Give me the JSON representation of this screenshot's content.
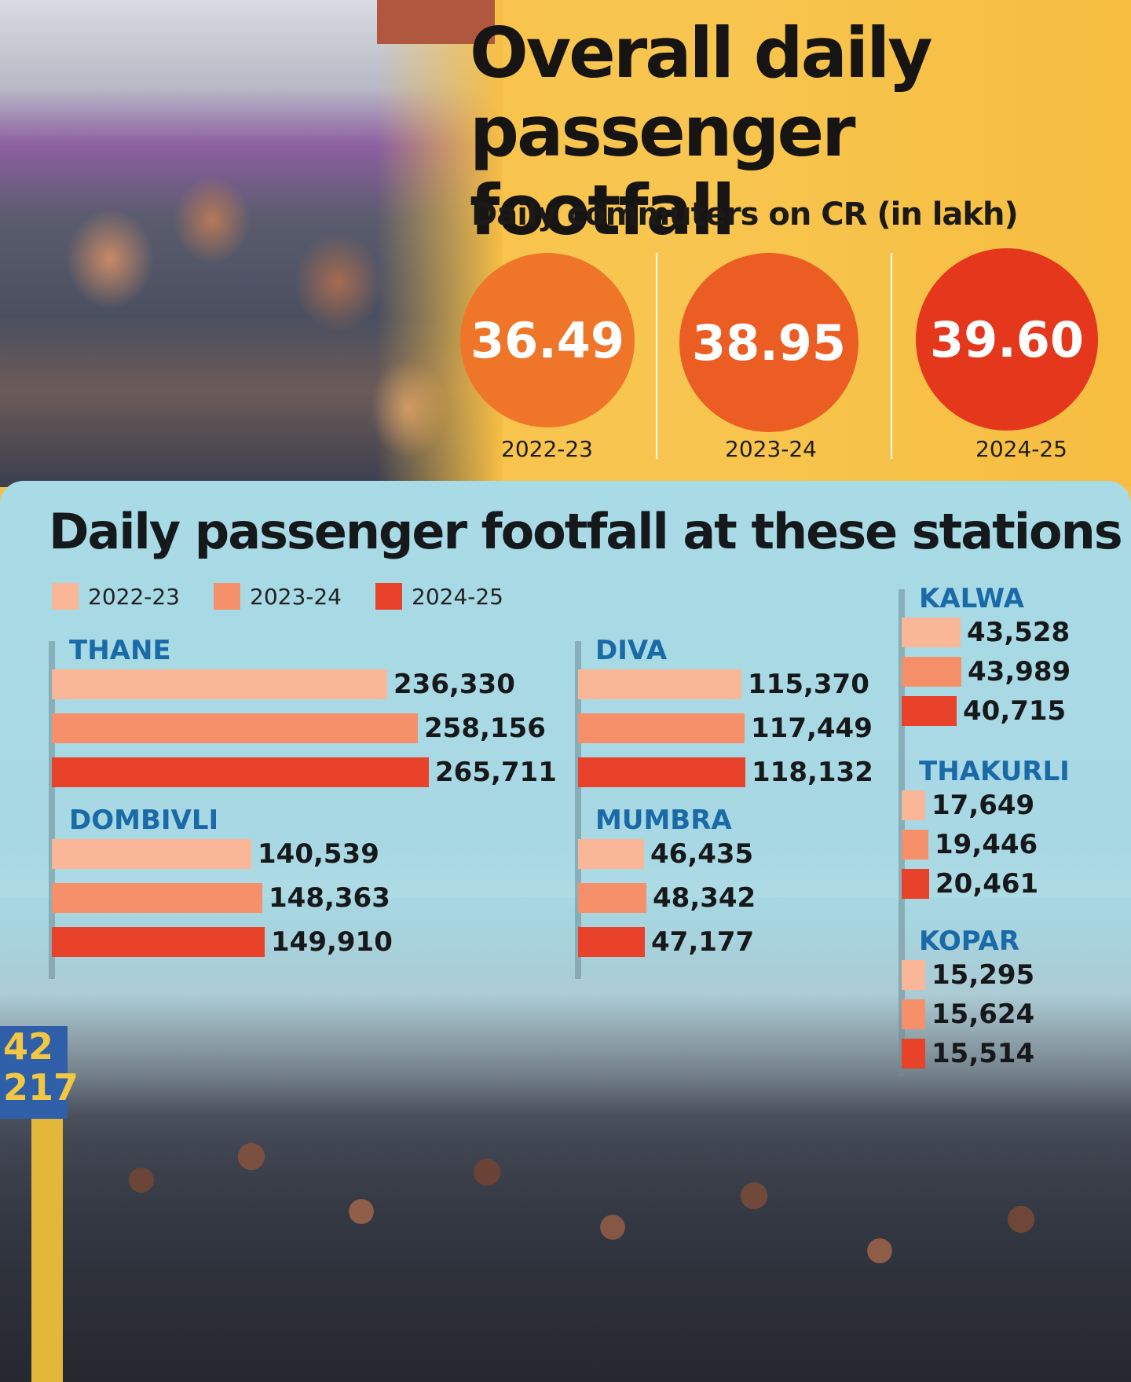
{
  "header": {
    "title_line1": "Overall daily",
    "title_line2": "passenger footfall",
    "subtitle": "Daily commuters on CR (in lakh)"
  },
  "overall": [
    {
      "year": "2022-23",
      "value": "36.49"
    },
    {
      "year": "2023-24",
      "value": "38.95"
    },
    {
      "year": "2024-25",
      "value": "39.60"
    }
  ],
  "colors": {
    "y2022": "#f9b797",
    "y2023": "#f6906a",
    "y2024": "#e8422b"
  },
  "chart_data": {
    "type": "bar",
    "title": "Daily passenger footfall at these stations",
    "legend": [
      "2022-23",
      "2023-24",
      "2024-25"
    ],
    "stations": [
      {
        "name": "THANE",
        "values": [
          236330,
          258156,
          265711
        ],
        "labels": [
          "236,330",
          "258,156",
          "265,711"
        ]
      },
      {
        "name": "DOMBIVLI",
        "values": [
          140539,
          148363,
          149910
        ],
        "labels": [
          "140,539",
          "148,363",
          "149,910"
        ]
      },
      {
        "name": "DIVA",
        "values": [
          115370,
          117449,
          118132
        ],
        "labels": [
          "115,370",
          "117,449",
          "118,132"
        ]
      },
      {
        "name": "MUMBRA",
        "values": [
          46435,
          48342,
          47177
        ],
        "labels": [
          "46,435",
          "48,342",
          "47,177"
        ]
      },
      {
        "name": "KALWA",
        "values": [
          43528,
          43989,
          40715
        ],
        "labels": [
          "43,528",
          "43,989",
          "40,715"
        ]
      },
      {
        "name": "THAKURLI",
        "values": [
          17649,
          19446,
          20461
        ],
        "labels": [
          "17,649",
          "19,446",
          "20,461"
        ]
      },
      {
        "name": "KOPAR",
        "values": [
          15295,
          15624,
          15514
        ],
        "labels": [
          "15,295",
          "15,624",
          "15,514"
        ]
      }
    ]
  }
}
